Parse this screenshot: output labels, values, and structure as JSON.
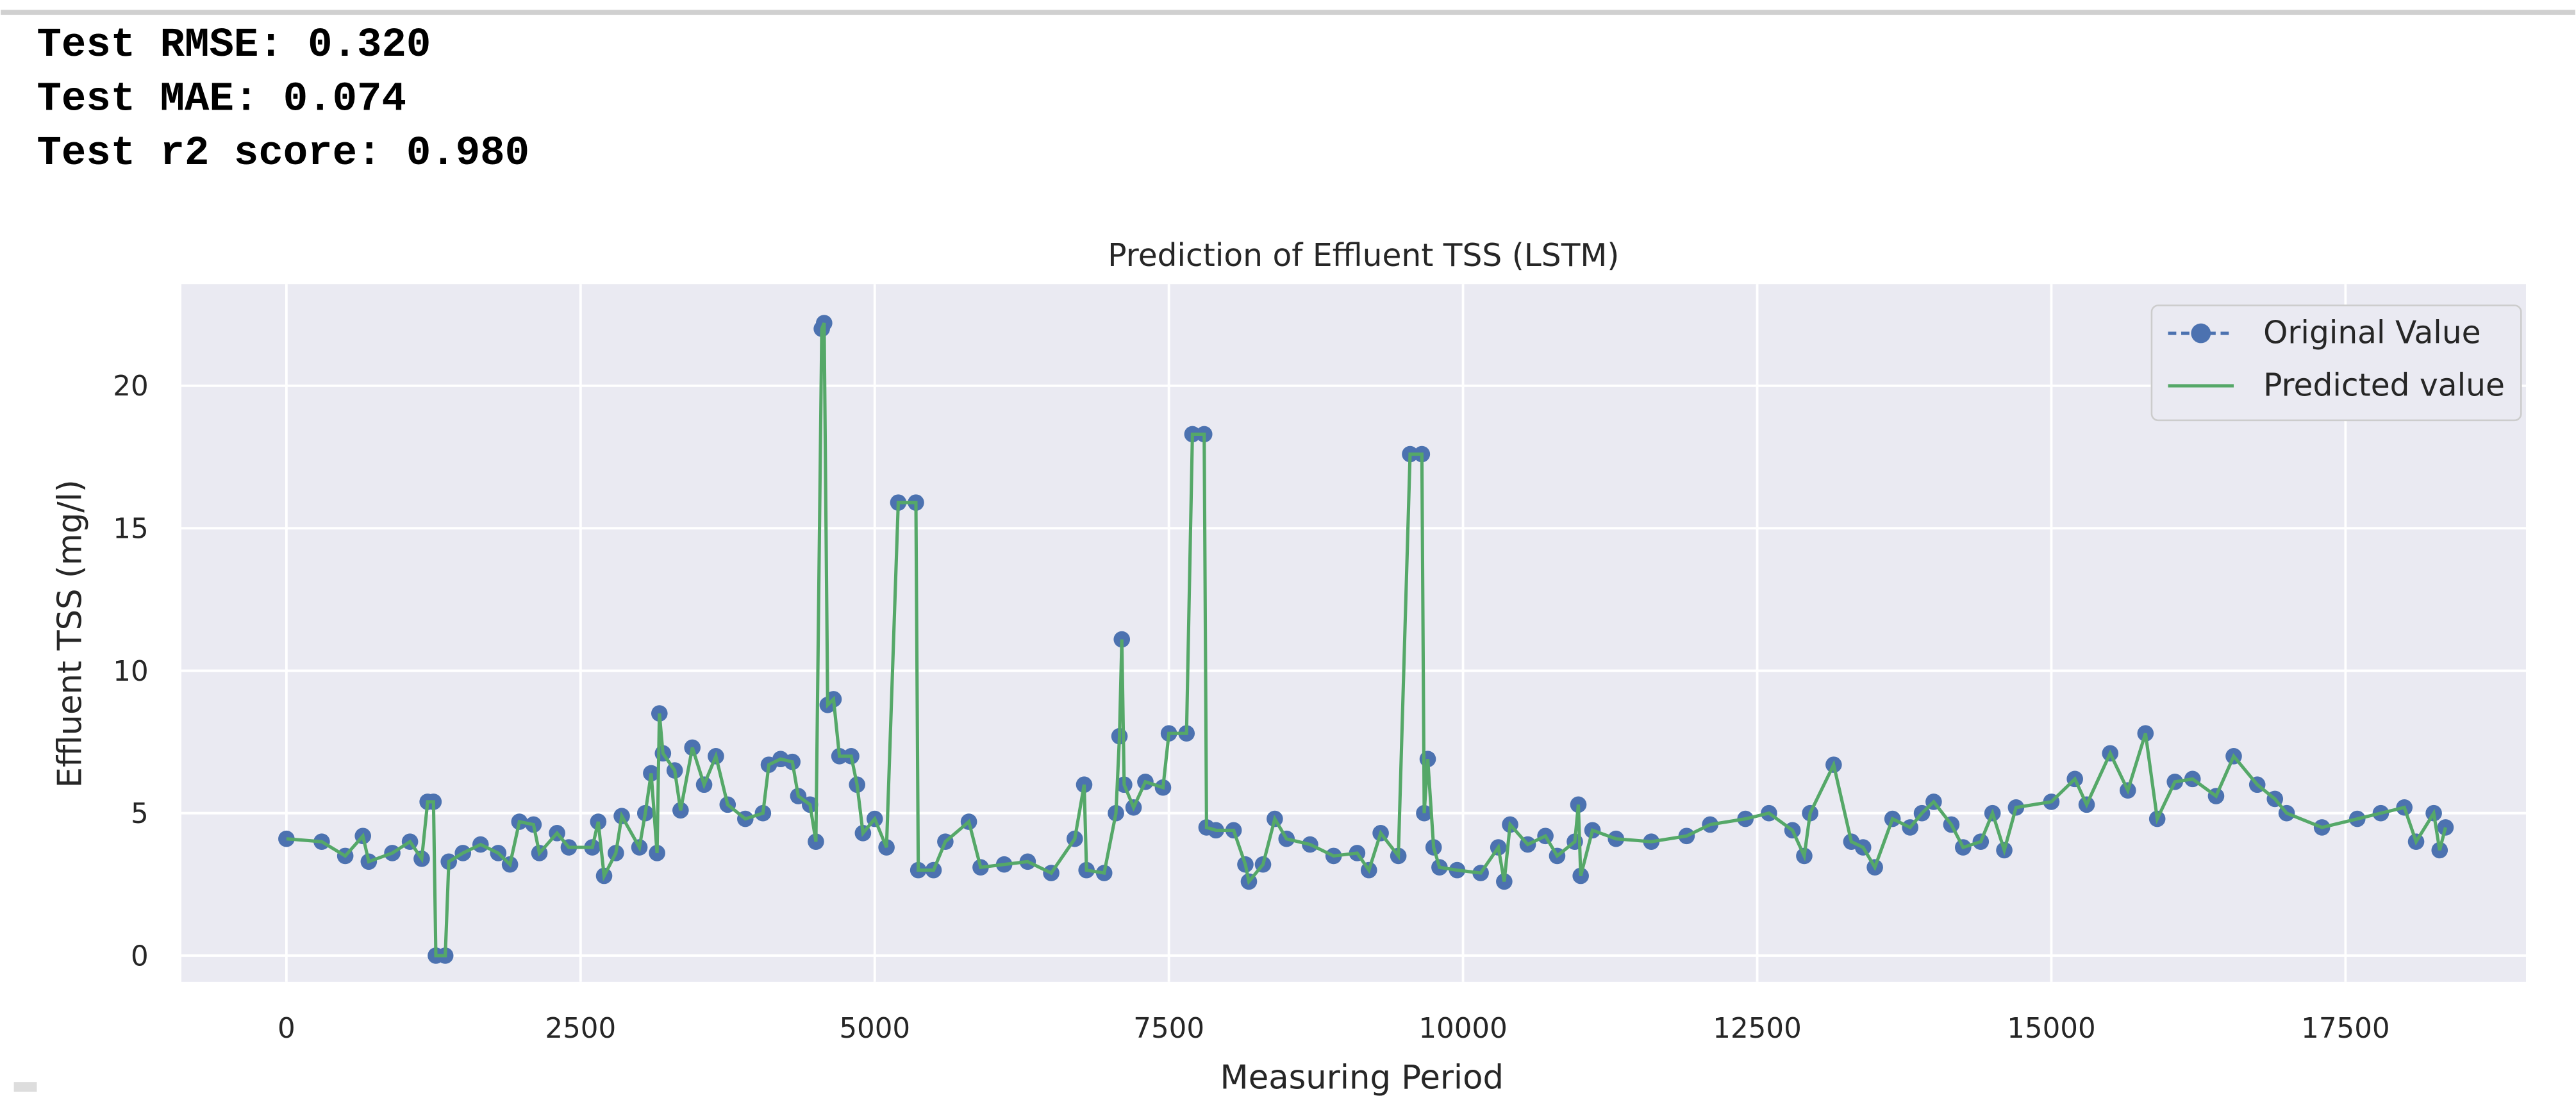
{
  "output_lines": [
    "Test RMSE: 0.320",
    "Test MAE: 0.074",
    "Test r2 score: 0.980"
  ],
  "chart_data": {
    "type": "line",
    "title": "Prediction of Effluent TSS (LSTM)",
    "x_label": "Measuring Period",
    "y_label": "Effluent TSS (mg/l)",
    "xlim": [
      -893,
      19034
    ],
    "ylim": [
      -0.92,
      23.57
    ],
    "xticks": [
      0,
      2500,
      5000,
      7500,
      10000,
      12500,
      15000,
      17500
    ],
    "yticks": [
      0,
      5,
      10,
      15,
      20
    ],
    "grid": true,
    "legend": "upper right",
    "x": [
      0,
      300,
      500,
      650,
      700,
      900,
      1050,
      1150,
      1200,
      1250,
      1270,
      1350,
      1380,
      1500,
      1650,
      1800,
      1900,
      1980,
      2100,
      2150,
      2300,
      2400,
      2600,
      2650,
      2700,
      2800,
      2850,
      3000,
      3050,
      3100,
      3150,
      3170,
      3200,
      3300,
      3350,
      3450,
      3550,
      3650,
      3750,
      3900,
      4050,
      4100,
      4200,
      4300,
      4350,
      4450,
      4500,
      4550,
      4570,
      4600,
      4650,
      4700,
      4800,
      4850,
      4900,
      5000,
      5100,
      5200,
      5350,
      5370,
      5500,
      5600,
      5800,
      5900,
      6100,
      6300,
      6500,
      6700,
      6780,
      6800,
      6950,
      7050,
      7080,
      7100,
      7120,
      7200,
      7300,
      7450,
      7500,
      7650,
      7700,
      7800,
      7820,
      7900,
      8050,
      8150,
      8180,
      8300,
      8400,
      8500,
      8700,
      8900,
      9100,
      9200,
      9300,
      9450,
      9550,
      9650,
      9670,
      9700,
      9750,
      9800,
      9950,
      10150,
      10300,
      10350,
      10400,
      10550,
      10700,
      10800,
      10950,
      10980,
      11000,
      11100,
      11300,
      11600,
      11900,
      12100,
      12400,
      12600,
      12800,
      12900,
      12950,
      13150,
      13300,
      13400,
      13500,
      13650,
      13800,
      13900,
      14000,
      14150,
      14250,
      14400,
      14500,
      14600,
      14700,
      15000,
      15200,
      15300,
      15500,
      15650,
      15800,
      15900,
      16050,
      16200,
      16400,
      16550,
      16750,
      16900,
      17000,
      17300,
      17600,
      17800,
      18000,
      18100,
      18250,
      18300,
      18350
    ],
    "series": [
      {
        "name": "Original Value",
        "color": "#4c72b0",
        "marker": true,
        "values": [
          4.1,
          4.0,
          3.5,
          4.2,
          3.3,
          3.6,
          4.0,
          3.4,
          5.4,
          5.4,
          0,
          0,
          3.3,
          3.6,
          3.9,
          3.6,
          3.2,
          4.7,
          4.6,
          3.6,
          4.3,
          3.8,
          3.8,
          4.7,
          2.8,
          3.6,
          4.9,
          3.8,
          5.0,
          6.4,
          3.6,
          8.5,
          7.1,
          6.5,
          5.1,
          7.3,
          6.0,
          7.0,
          5.3,
          4.8,
          5.0,
          6.7,
          6.9,
          6.8,
          5.6,
          5.3,
          4.0,
          22.0,
          22.2,
          8.8,
          9.0,
          7.0,
          7.0,
          6.0,
          4.3,
          4.8,
          3.8,
          15.9,
          15.9,
          3.0,
          3.0,
          4.0,
          4.7,
          3.1,
          3.2,
          3.3,
          2.9,
          4.1,
          6.0,
          3.0,
          2.9,
          5.0,
          7.7,
          11.1,
          6.0,
          5.2,
          6.1,
          5.9,
          7.8,
          7.8,
          18.3,
          18.3,
          4.5,
          4.4,
          4.4,
          3.2,
          2.6,
          3.2,
          4.8,
          4.1,
          3.9,
          3.5,
          3.6,
          3.0,
          4.3,
          3.5,
          17.6,
          17.6,
          5.0,
          6.9,
          3.8,
          3.1,
          3.0,
          2.9,
          3.8,
          2.6,
          4.6,
          3.9,
          4.2,
          3.5,
          4.0,
          5.3,
          2.8,
          4.4,
          4.1,
          4.0,
          4.2,
          4.6,
          4.8,
          5.0,
          4.4,
          3.5,
          5.0,
          6.7,
          4.0,
          3.8,
          3.1,
          4.8,
          4.5,
          5.0,
          5.4,
          4.6,
          3.8,
          4.0,
          5.0,
          3.7,
          5.2,
          5.4,
          6.2,
          5.3,
          7.1,
          5.8,
          7.8,
          4.8,
          6.1,
          6.2,
          5.6,
          7.0,
          6.0,
          5.5,
          5.0,
          4.5,
          4.8,
          5.0,
          5.2,
          4.0,
          5.0,
          3.7,
          4.5
        ]
      },
      {
        "name": "Predicted value",
        "color": "#55a868",
        "marker": false,
        "values": [
          4.1,
          4.0,
          3.5,
          4.2,
          3.3,
          3.6,
          4.0,
          3.4,
          5.4,
          5.4,
          0,
          0,
          3.3,
          3.6,
          3.9,
          3.6,
          3.2,
          4.7,
          4.6,
          3.6,
          4.3,
          3.8,
          3.8,
          4.7,
          2.8,
          3.6,
          4.9,
          3.8,
          5.0,
          6.4,
          3.6,
          8.5,
          7.1,
          6.5,
          5.1,
          7.3,
          6.0,
          7.0,
          5.3,
          4.8,
          5.0,
          6.7,
          6.9,
          6.8,
          5.6,
          5.3,
          4.0,
          22.0,
          22.2,
          8.8,
          9.0,
          7.0,
          7.0,
          6.0,
          4.3,
          4.8,
          3.8,
          15.9,
          15.9,
          3.0,
          3.0,
          4.0,
          4.7,
          3.1,
          3.2,
          3.3,
          2.9,
          4.1,
          6.0,
          3.0,
          2.9,
          5.0,
          7.7,
          11.1,
          6.0,
          5.2,
          6.1,
          5.9,
          7.8,
          7.8,
          18.3,
          18.3,
          4.5,
          4.4,
          4.4,
          3.2,
          2.6,
          3.2,
          4.8,
          4.1,
          3.9,
          3.5,
          3.6,
          3.0,
          4.3,
          3.5,
          17.6,
          17.6,
          5.0,
          6.9,
          3.8,
          3.1,
          3.0,
          2.9,
          3.8,
          2.6,
          4.6,
          3.9,
          4.2,
          3.5,
          4.0,
          5.3,
          2.8,
          4.4,
          4.1,
          4.0,
          4.2,
          4.6,
          4.8,
          5.0,
          4.4,
          3.5,
          5.0,
          6.7,
          4.0,
          3.8,
          3.1,
          4.8,
          4.5,
          5.0,
          5.4,
          4.6,
          3.8,
          4.0,
          5.0,
          3.7,
          5.2,
          5.4,
          6.2,
          5.3,
          7.1,
          5.8,
          7.8,
          4.8,
          6.1,
          6.2,
          5.6,
          7.0,
          6.0,
          5.5,
          5.0,
          4.5,
          4.8,
          5.0,
          5.2,
          4.0,
          5.0,
          3.7,
          4.5
        ]
      }
    ]
  }
}
